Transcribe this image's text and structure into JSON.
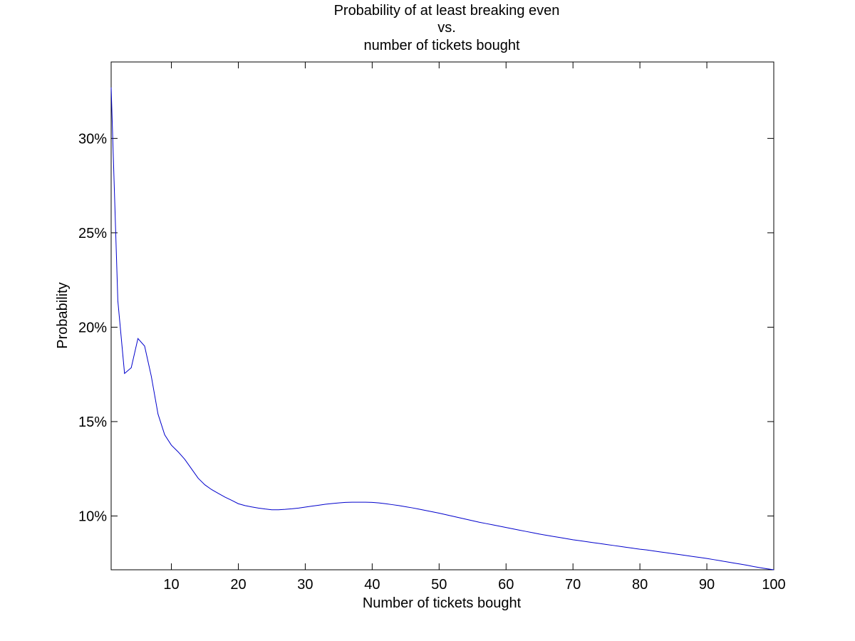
{
  "chart_data": {
    "type": "line",
    "title": [
      "Probability of at least breaking even",
      "vs.",
      "number of tickets bought"
    ],
    "xlabel": "Number of tickets bought",
    "ylabel": "Probability",
    "xlim": [
      1,
      100
    ],
    "ylim": [
      0.0715,
      0.3405
    ],
    "x_ticks": [
      10,
      20,
      30,
      40,
      50,
      60,
      70,
      80,
      90,
      100
    ],
    "x_tick_labels": [
      "10",
      "20",
      "30",
      "40",
      "50",
      "60",
      "70",
      "80",
      "90",
      "100"
    ],
    "y_ticks": [
      0.1,
      0.15,
      0.2,
      0.25,
      0.3
    ],
    "y_tick_labels": [
      "10%",
      "15%",
      "20%",
      "25%",
      "30%"
    ],
    "grid": false,
    "legend": "none",
    "series": [
      {
        "color": "#0000cc",
        "x": [
          1,
          2,
          3,
          4,
          5,
          6,
          7,
          8,
          9,
          10,
          11,
          12,
          13,
          14,
          15,
          16,
          17,
          18,
          19,
          20,
          21,
          22,
          23,
          24,
          25,
          26,
          27,
          28,
          29,
          30,
          31,
          32,
          33,
          34,
          35,
          36,
          37,
          38,
          39,
          40,
          41,
          42,
          43,
          44,
          45,
          46,
          47,
          48,
          49,
          50,
          51,
          52,
          53,
          54,
          55,
          56,
          57,
          58,
          59,
          60,
          61,
          62,
          63,
          64,
          65,
          66,
          67,
          68,
          69,
          70,
          71,
          72,
          73,
          74,
          75,
          76,
          77,
          78,
          79,
          80,
          81,
          82,
          83,
          84,
          85,
          86,
          87,
          88,
          89,
          90,
          91,
          92,
          93,
          94,
          95,
          96,
          97,
          98,
          99,
          100
        ],
        "values": [
          0.327,
          0.214,
          0.1755,
          0.1785,
          0.194,
          0.19,
          0.174,
          0.154,
          0.143,
          0.1375,
          0.134,
          0.13,
          0.125,
          0.12,
          0.1165,
          0.114,
          0.112,
          0.11,
          0.1083,
          0.1065,
          0.1055,
          0.1048,
          0.1042,
          0.1037,
          0.1033,
          0.1033,
          0.1035,
          0.1038,
          0.1042,
          0.1047,
          0.1052,
          0.1057,
          0.1062,
          0.1066,
          0.1069,
          0.1072,
          0.1073,
          0.1073,
          0.1073,
          0.1072,
          0.1069,
          0.1065,
          0.106,
          0.1055,
          0.1049,
          0.1043,
          0.1036,
          0.1029,
          0.1022,
          0.1015,
          0.1007,
          0.0999,
          0.0991,
          0.0983,
          0.0975,
          0.0967,
          0.096,
          0.0953,
          0.0946,
          0.0939,
          0.0932,
          0.0925,
          0.0918,
          0.0911,
          0.0904,
          0.0898,
          0.0892,
          0.0886,
          0.088,
          0.0874,
          0.0869,
          0.0864,
          0.0859,
          0.0854,
          0.0849,
          0.0844,
          0.0839,
          0.0834,
          0.0829,
          0.0824,
          0.082,
          0.0815,
          0.081,
          0.0805,
          0.08,
          0.0795,
          0.079,
          0.0785,
          0.078,
          0.0775,
          0.0769,
          0.0763,
          0.0757,
          0.0751,
          0.0745,
          0.0739,
          0.0732,
          0.0726,
          0.072,
          0.0715
        ]
      }
    ]
  }
}
